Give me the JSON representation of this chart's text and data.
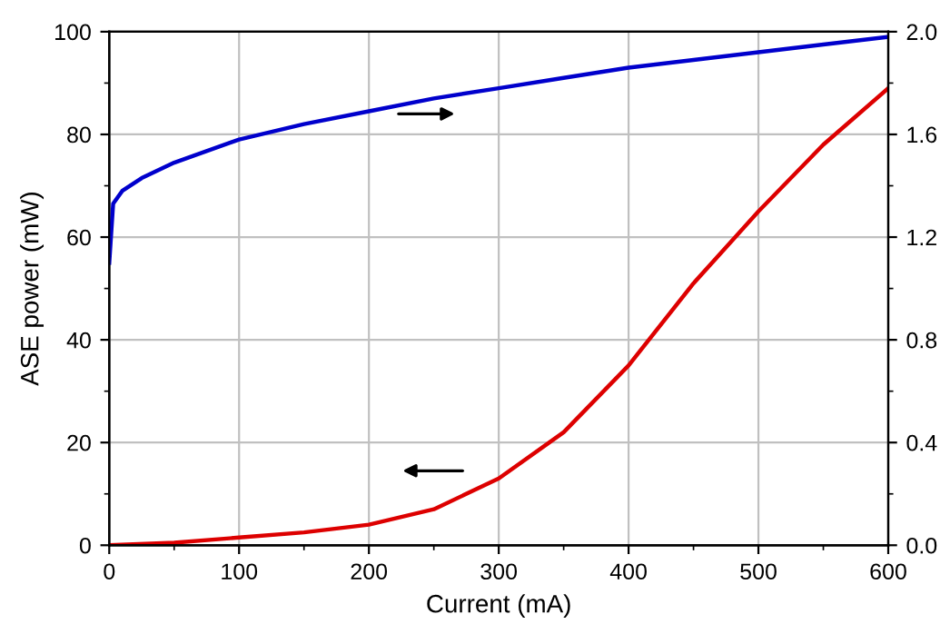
{
  "chart_data": {
    "type": "line",
    "xlabel": "Current (mA)",
    "ylabel": "ASE power (mW)",
    "xlim": [
      0,
      600
    ],
    "xticks": [
      0,
      100,
      200,
      300,
      400,
      500,
      600
    ],
    "ylim": [
      0,
      100
    ],
    "yticks": [
      0,
      20,
      40,
      60,
      80,
      100
    ],
    "y2lim": [
      0,
      2.0
    ],
    "y2ticks": [
      {
        "value": 0,
        "label": "0.0"
      },
      {
        "value": 0.4,
        "label": "0.4"
      },
      {
        "value": 0.8,
        "label": "0.8"
      },
      {
        "value": 1.2,
        "label": "1.2"
      },
      {
        "value": 1.6,
        "label": "1.6"
      },
      {
        "value": 2.0,
        "label": "2.0"
      }
    ],
    "grid": true,
    "marker": "none",
    "line_style": "solid",
    "series": [
      {
        "color": "#0000cc",
        "axis": "y2",
        "x": [
          0,
          3,
          10,
          25,
          50,
          100,
          150,
          200,
          250,
          300,
          350,
          400,
          450,
          500,
          550,
          600
        ],
        "values": [
          1.1,
          1.33,
          1.38,
          1.43,
          1.49,
          1.58,
          1.64,
          1.69,
          1.74,
          1.78,
          1.82,
          1.86,
          1.89,
          1.92,
          1.95,
          1.98
        ]
      },
      {
        "color": "#dd0000",
        "x": [
          0,
          50,
          100,
          150,
          200,
          250,
          300,
          350,
          400,
          450,
          500,
          550,
          600
        ],
        "values": [
          0,
          0.5,
          1.5,
          2.5,
          4,
          7,
          13,
          22,
          35,
          51,
          65,
          78,
          89
        ]
      }
    ]
  }
}
